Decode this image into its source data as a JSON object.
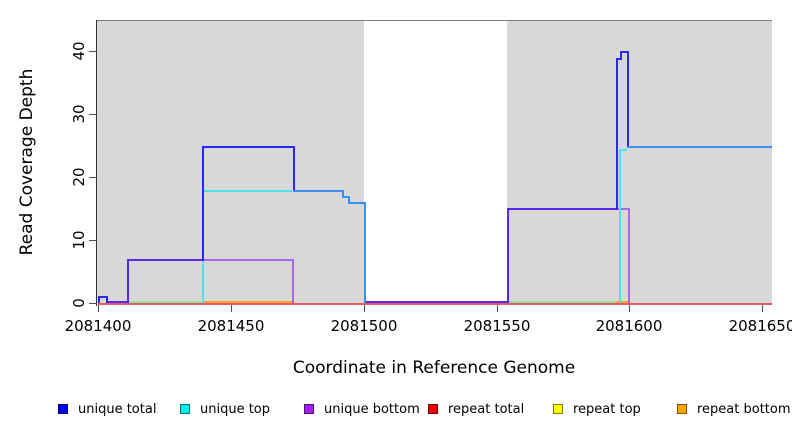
{
  "chart_data": {
    "type": "line",
    "subtype": "step-coverage",
    "title": "",
    "xlabel": "Coordinate in Reference Genome",
    "ylabel": "Read Coverage Depth",
    "xlim": [
      2081400,
      2081654
    ],
    "ylim": [
      0,
      45
    ],
    "x_ticks": [
      2081400,
      2081450,
      2081500,
      2081550,
      2081600,
      2081650
    ],
    "y_ticks": [
      0,
      10,
      20,
      30,
      40
    ],
    "grid": false,
    "legend_position": "bottom",
    "background": {
      "plot_fill": "#D8D8D8",
      "outer_fill": "#FFFFFF",
      "white_gap_x": [
        2081500,
        2081554
      ]
    },
    "series": [
      {
        "name": "unique total",
        "legend_color": "#0000EE",
        "steps": [
          [
            2081400,
            1
          ],
          [
            2081403,
            0
          ],
          [
            2081411,
            7
          ],
          [
            2081439,
            25
          ],
          [
            2081473,
            18
          ],
          [
            2081492,
            17
          ],
          [
            2081494,
            16
          ],
          [
            2081500,
            0
          ],
          [
            2081554,
            15
          ],
          [
            2081595,
            39
          ],
          [
            2081596.5,
            40
          ],
          [
            2081599,
            25
          ],
          [
            2081654,
            25
          ]
        ]
      },
      {
        "name": "unique top",
        "legend_color": "#00EEEE",
        "steps": [
          [
            2081400,
            0
          ],
          [
            2081439,
            18
          ],
          [
            2081492,
            17
          ],
          [
            2081494,
            16
          ],
          [
            2081500,
            0
          ],
          [
            2081596,
            24.5
          ],
          [
            2081599,
            25
          ],
          [
            2081654,
            25
          ]
        ]
      },
      {
        "name": "unique bottom",
        "legend_color": "#A020F0",
        "steps": [
          [
            2081400,
            0
          ],
          [
            2081411,
            7
          ],
          [
            2081473,
            0
          ],
          [
            2081554,
            15
          ],
          [
            2081599.5,
            0
          ],
          [
            2081654,
            0
          ]
        ]
      },
      {
        "name": "repeat total",
        "legend_color": "#EE0000",
        "steps": [
          [
            2081400,
            0
          ],
          [
            2081654,
            0
          ]
        ]
      },
      {
        "name": "repeat top",
        "legend_color": "#FFFF00",
        "steps": [
          [
            2081400,
            0
          ],
          [
            2081654,
            0
          ]
        ]
      },
      {
        "name": "repeat bottom",
        "legend_color": "#FFA500",
        "steps": [
          [
            2081400,
            0
          ],
          [
            2081654,
            0
          ]
        ]
      }
    ],
    "colors": {
      "red": "#E05A64",
      "green": "#97DF9C",
      "orange": "#FFA033",
      "violet": "#5629EB",
      "purple": "#A868E8",
      "cyan": "#4FE3E8",
      "royal": "#2A2AEE",
      "blend": "#3E8EF7"
    },
    "render_segments": [
      [
        2081400,
        0,
        2081654,
        0,
        "red"
      ],
      [
        2081411,
        0.3,
        2081439,
        0.3,
        "green"
      ],
      [
        2081554,
        0.3,
        2081595,
        0.3,
        "green"
      ],
      [
        2081439,
        0.3,
        2081473,
        0.3,
        "orange"
      ],
      [
        2081595,
        0.3,
        2081599.5,
        0.3,
        "orange"
      ],
      [
        2081403,
        0.3,
        2081411,
        0.3,
        "violet"
      ],
      [
        2081411,
        0.3,
        2081411,
        7,
        "violet"
      ],
      [
        2081411,
        7,
        2081439,
        7,
        "violet"
      ],
      [
        2081500,
        0.3,
        2081554,
        0.3,
        "violet"
      ],
      [
        2081554,
        0.3,
        2081554,
        15,
        "violet"
      ],
      [
        2081554,
        15,
        2081595,
        15,
        "violet"
      ],
      [
        2081439,
        7,
        2081473,
        7,
        "purple"
      ],
      [
        2081473,
        7,
        2081473,
        0.3,
        "purple"
      ],
      [
        2081595,
        15,
        2081599.5,
        15,
        "purple"
      ],
      [
        2081599.5,
        15,
        2081599.5,
        0.3,
        "purple"
      ],
      [
        2081439,
        0.3,
        2081439,
        18,
        "cyan"
      ],
      [
        2081439,
        18,
        2081473,
        18,
        "cyan"
      ],
      [
        2081596,
        0.3,
        2081596,
        24.5,
        "cyan"
      ],
      [
        2081596,
        24.5,
        2081599,
        24.5,
        "cyan"
      ],
      [
        2081400,
        0.3,
        2081400,
        1,
        "royal"
      ],
      [
        2081400,
        1,
        2081403,
        1,
        "royal"
      ],
      [
        2081403,
        1,
        2081403,
        0.3,
        "royal"
      ],
      [
        2081439,
        7,
        2081439,
        25,
        "royal"
      ],
      [
        2081439,
        25,
        2081473.5,
        25,
        "royal"
      ],
      [
        2081473.5,
        25,
        2081473.5,
        18,
        "royal"
      ],
      [
        2081595,
        15,
        2081595,
        39,
        "royal"
      ],
      [
        2081595,
        39,
        2081596.5,
        39,
        "royal"
      ],
      [
        2081596.5,
        39,
        2081596.5,
        40,
        "royal"
      ],
      [
        2081596.5,
        40,
        2081599,
        40,
        "royal"
      ],
      [
        2081599,
        40,
        2081599,
        25,
        "royal"
      ],
      [
        2081473.5,
        18,
        2081492,
        18,
        "blend"
      ],
      [
        2081492,
        18,
        2081492,
        17,
        "blend"
      ],
      [
        2081492,
        17,
        2081494,
        17,
        "blend"
      ],
      [
        2081494,
        17,
        2081494,
        16,
        "blend"
      ],
      [
        2081494,
        16,
        2081500,
        16,
        "blend"
      ],
      [
        2081500,
        16,
        2081500,
        0.3,
        "blend"
      ],
      [
        2081599,
        25,
        2081654,
        25,
        "blend"
      ]
    ]
  },
  "legend": {
    "items": [
      {
        "label": "unique total",
        "color": "#0000EE"
      },
      {
        "label": "unique top",
        "color": "#00EEEE"
      },
      {
        "label": "unique bottom",
        "color": "#A020F0"
      },
      {
        "label": "repeat total",
        "color": "#EE0000"
      },
      {
        "label": "repeat top",
        "color": "#FFFF00"
      },
      {
        "label": "repeat bottom",
        "color": "#FFA500"
      }
    ]
  }
}
